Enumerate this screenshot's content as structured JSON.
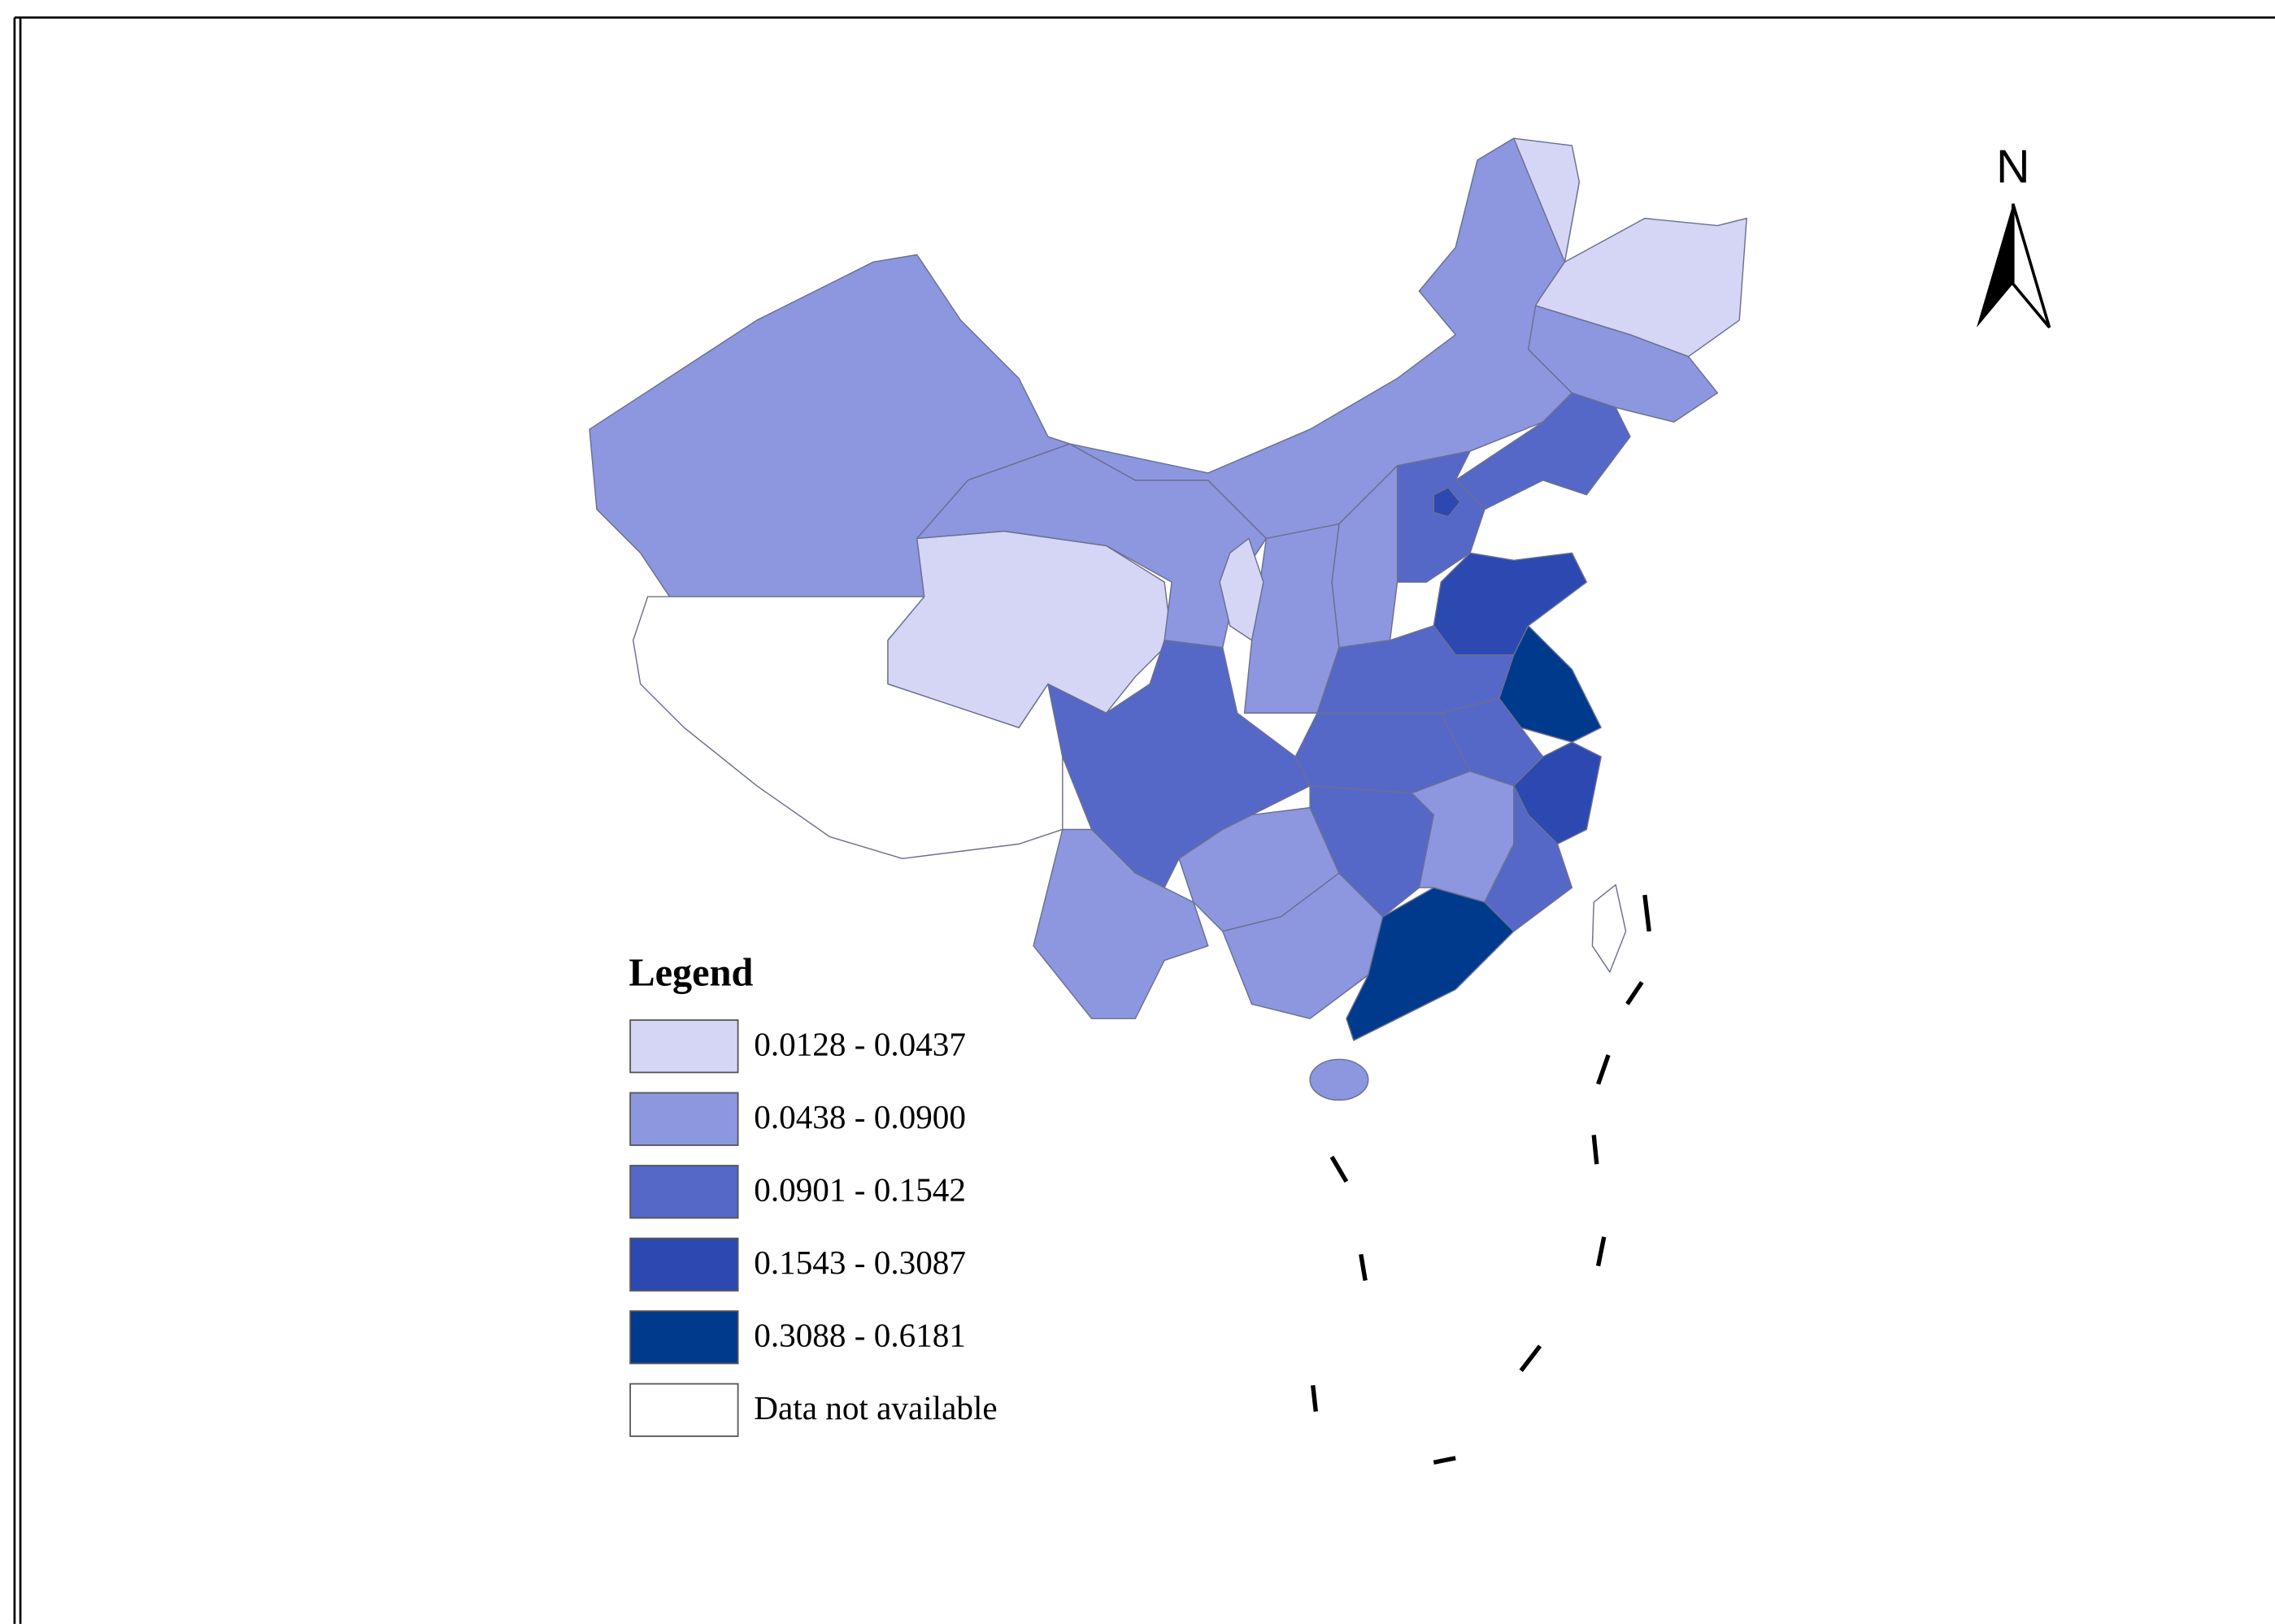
{
  "legend": {
    "title": "Legend",
    "items": [
      {
        "label": "0.0128 - 0.0437",
        "color": "#d5d6f6"
      },
      {
        "label": "0.0438 - 0.0900",
        "color": "#8c97e0"
      },
      {
        "label": "0.0901 - 0.1542",
        "color": "#5568c8"
      },
      {
        "label": "0.1543 - 0.3087",
        "color": "#2c49b1"
      },
      {
        "label": "0.3088 - 0.6181",
        "color": "#003a8d"
      },
      {
        "label": "Data not available",
        "color": "#ffffff"
      }
    ]
  },
  "north_arrow": {
    "label": "N"
  }
}
